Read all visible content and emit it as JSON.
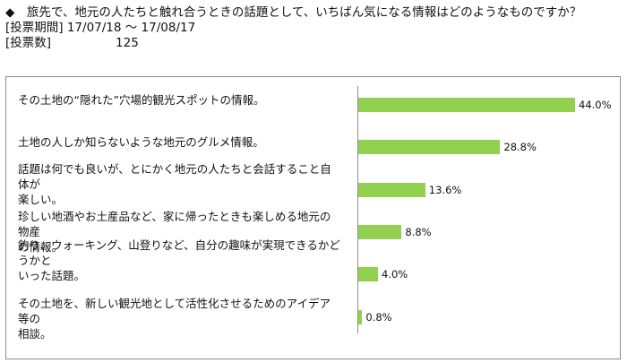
{
  "header": {
    "question": "◆　旅先で、地元の人たちと触れ合うときの話題として、いちばん気になる情報はどのようなものですか？",
    "period_label": "[投票期間]",
    "period_value": "17/07/18 〜 17/08/17",
    "count_label": "[投票数]",
    "count_value": "125"
  },
  "chart_data": {
    "type": "bar",
    "orientation": "horizontal",
    "unit": "%",
    "xlim": [
      0,
      55
    ],
    "bar_color": "#92d050",
    "categories": [
      [
        "その土地の“隠れた”穴場的観光スポットの情報。"
      ],
      [
        "土地の人しか知らないような地元のグルメ情報。"
      ],
      [
        "話題は何でも良いが、とにかく地元の人たちと会話すること自体が",
        "楽しい。"
      ],
      [
        "珍しい地酒やお土産品など、家に帰ったときも楽しめる地元の物産",
        "の情報。"
      ],
      [
        "釣り、ウォーキング、山登りなど、自分の趣味が実現できるかどうかと",
        "いった話題。"
      ],
      [
        "その土地を、新しい観光地として活性化させるためのアイデア等の",
        "相談。"
      ]
    ],
    "values": [
      44.0,
      28.8,
      13.6,
      8.8,
      4.0,
      0.8
    ],
    "value_labels": [
      "44.0%",
      "28.8%",
      "13.6%",
      "8.8%",
      "4.0%",
      "0.8%"
    ]
  }
}
